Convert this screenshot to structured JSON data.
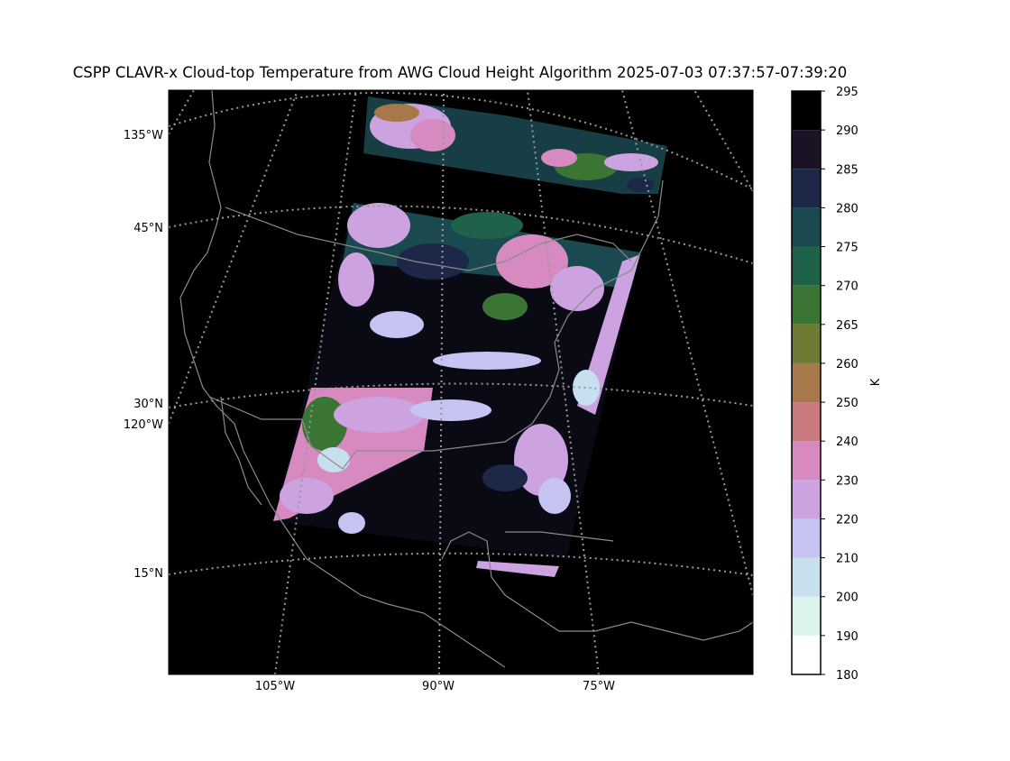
{
  "title": "CSPP CLAVR-x Cloud-top Temperature from AWG Cloud Height Algorithm 2025-07-03 07:37:57-07:39:20",
  "map": {
    "lat_labels": [
      "45°N",
      "30°N",
      "15°N"
    ],
    "lon_labels_left": [
      "135°W",
      "120°W"
    ],
    "lon_labels_bottom": [
      "105°W",
      "90°W",
      "75°W"
    ]
  },
  "colorbar": {
    "label": "K",
    "ticks": [
      180,
      190,
      200,
      210,
      220,
      230,
      240,
      250,
      260,
      265,
      270,
      275,
      280,
      285,
      290,
      295
    ],
    "colors": [
      "#ffffff",
      "#ddf3ee",
      "#c6e0ef",
      "#c5c4f2",
      "#cca2e0",
      "#d68abf",
      "#c97a7f",
      "#a6784c",
      "#6f7a34",
      "#3b7534",
      "#1f6249",
      "#1a4a50",
      "#1d2748",
      "#1c1226",
      "#000000"
    ]
  }
}
